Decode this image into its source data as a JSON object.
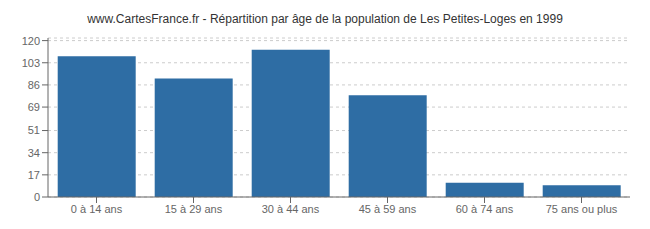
{
  "chart_data": {
    "type": "bar",
    "title": "www.CartesFrance.fr - Répartition par âge de la population de Les Petites-Loges en 1999",
    "categories": [
      "0 à 14 ans",
      "15 à 29 ans",
      "30 à 44 ans",
      "45 à 59 ans",
      "60 à 74 ans",
      "75 ans ou plus"
    ],
    "values": [
      108,
      91,
      113,
      78,
      11,
      9
    ],
    "color": "#2e6da4",
    "ylim": [
      0,
      122
    ],
    "yticks": [
      0,
      17,
      34,
      51,
      69,
      86,
      103,
      120
    ],
    "grid": true
  }
}
